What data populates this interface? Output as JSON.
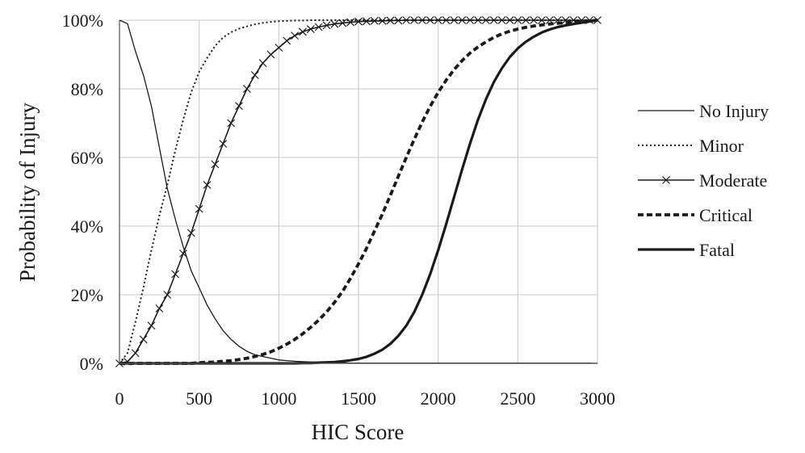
{
  "chart_data": {
    "type": "line",
    "title": "",
    "xlabel": "HIC Score",
    "ylabel": "Probability of Injury",
    "xlim": [
      0,
      3000
    ],
    "ylim": [
      0,
      100
    ],
    "x_ticks": [
      0,
      500,
      1000,
      1500,
      2000,
      2500,
      3000
    ],
    "y_ticks": [
      0,
      20,
      40,
      60,
      80,
      100
    ],
    "x_tick_labels": [
      "0",
      "500",
      "1000",
      "1500",
      "2000",
      "2500",
      "3000"
    ],
    "y_tick_labels": [
      "0%",
      "20%",
      "40%",
      "60%",
      "80%",
      "100%"
    ],
    "grid": true,
    "legend_position": "right",
    "colors": {
      "line": "#1a1a1a",
      "grid": "#c8c8c8"
    },
    "x": [
      0,
      50,
      100,
      150,
      200,
      250,
      300,
      350,
      400,
      450,
      500,
      550,
      600,
      650,
      700,
      750,
      800,
      850,
      900,
      950,
      1000,
      1050,
      1100,
      1150,
      1200,
      1250,
      1300,
      1350,
      1400,
      1450,
      1500,
      1550,
      1600,
      1650,
      1700,
      1750,
      1800,
      1850,
      1900,
      1950,
      2000,
      2050,
      2100,
      2150,
      2200,
      2250,
      2300,
      2350,
      2400,
      2450,
      2500,
      2550,
      2600,
      2650,
      2700,
      2750,
      2800,
      2850,
      2900,
      2950,
      3000
    ],
    "series": [
      {
        "name": "No Injury",
        "style": "thin-solid",
        "values": [
          100,
          99,
          91,
          84,
          75,
          63,
          51,
          42,
          34,
          27,
          22,
          17,
          13,
          9.5,
          7,
          5,
          3.5,
          2.5,
          2,
          1.5,
          1,
          0.8,
          0.6,
          0.5,
          0.4,
          0.3,
          0.3,
          0.2,
          0.2,
          0.1,
          0.1,
          0.1,
          0.1,
          0.1,
          0.1,
          0.1,
          0.1,
          0.1,
          0.1,
          0.1,
          0.1,
          0.1,
          0.1,
          0.1,
          0.1,
          0.1,
          0.1,
          0.1,
          0.1,
          0.1,
          0.1,
          0.1,
          0.1,
          0.1,
          0.1,
          0.1,
          0.1,
          0.1,
          0.1,
          0.1,
          0
        ]
      },
      {
        "name": "Minor",
        "style": "dotted",
        "values": [
          0,
          3,
          12,
          22,
          33,
          43,
          52,
          62,
          71,
          79,
          85,
          89,
          92.5,
          95,
          96.5,
          97.5,
          98.2,
          98.8,
          99.2,
          99.5,
          99.7,
          99.8,
          99.9,
          99.9,
          100,
          100,
          100,
          100,
          100,
          100,
          100,
          100,
          100,
          100,
          100,
          100,
          100,
          100,
          100,
          100,
          100,
          100,
          100,
          100,
          100,
          100,
          100,
          100,
          100,
          100,
          100,
          100,
          100,
          100,
          100,
          100,
          100,
          100,
          100,
          100,
          100
        ]
      },
      {
        "name": "Moderate",
        "style": "solid-x-markers",
        "values": [
          0,
          0.5,
          3,
          7,
          11,
          16,
          20,
          26,
          32,
          38,
          45,
          52,
          58,
          64,
          70,
          75,
          80,
          84,
          87.5,
          90,
          92,
          94,
          95.5,
          96.6,
          97.4,
          98,
          98.5,
          98.9,
          99.2,
          99.4,
          99.6,
          99.7,
          99.8,
          99.8,
          99.9,
          99.9,
          100,
          100,
          100,
          100,
          100,
          100,
          100,
          100,
          100,
          100,
          100,
          100,
          100,
          100,
          100,
          100,
          100,
          100,
          100,
          100,
          100,
          100,
          100,
          100,
          100
        ]
      },
      {
        "name": "Critical",
        "style": "thick-dashed",
        "values": [
          0,
          0,
          0,
          0,
          0,
          0,
          0,
          0,
          0,
          0,
          0.2,
          0.3,
          0.4,
          0.6,
          0.8,
          1.1,
          1.5,
          2,
          2.6,
          3.4,
          4.4,
          5.6,
          7,
          8.6,
          10.5,
          12.6,
          15,
          17.8,
          21,
          24.8,
          29,
          33.5,
          38.5,
          43.5,
          49,
          54.5,
          60,
          65.3,
          70.3,
          74.9,
          79,
          82.5,
          85.6,
          88.2,
          90.4,
          92.2,
          93.7,
          95,
          96,
          96.8,
          97.4,
          97.9,
          98.3,
          98.6,
          98.9,
          99.1,
          99.3,
          99.5,
          99.7,
          99.8,
          100
        ]
      },
      {
        "name": "Fatal",
        "style": "thick-solid",
        "values": [
          0,
          0,
          0,
          0,
          0,
          0,
          0,
          0,
          0,
          0,
          0,
          0,
          0,
          0,
          0,
          0,
          0,
          0,
          0,
          0,
          0,
          0,
          0,
          0.1,
          0.1,
          0.2,
          0.3,
          0.4,
          0.6,
          0.9,
          1.3,
          1.9,
          2.8,
          4,
          5.7,
          8,
          11,
          15,
          20,
          26,
          33,
          40.5,
          48.5,
          56.5,
          64,
          71,
          77,
          82,
          86,
          89.3,
          91.8,
          93.7,
          95.2,
          96.4,
          97.3,
          98,
          98.5,
          98.9,
          99.3,
          99.6,
          100
        ]
      }
    ]
  }
}
